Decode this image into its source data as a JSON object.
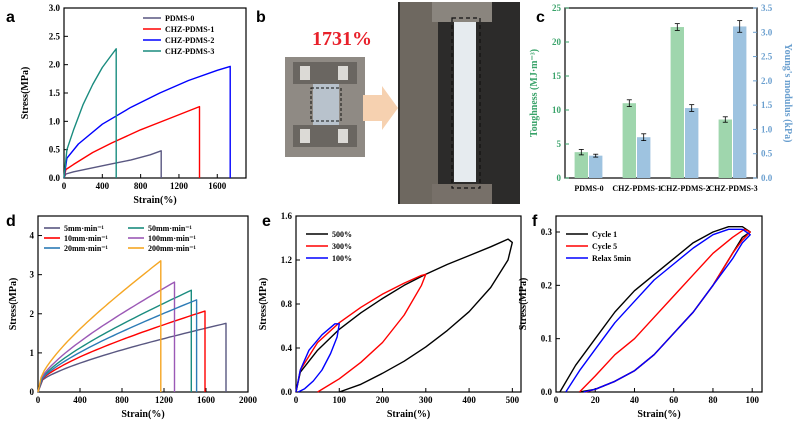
{
  "panel_labels": {
    "a": "a",
    "b": "b",
    "c": "c",
    "d": "d",
    "e": "e",
    "f": "f"
  },
  "photo": {
    "strain_label": "1731%",
    "label_color": "#e8202a"
  },
  "colors": {
    "black": "#000000",
    "red": "#ff0000",
    "blue": "#0000ff",
    "teal": "#1a8c7f",
    "purple": "#595781",
    "green_bar": "#9fd6ad",
    "blue_bar": "#9ec3e0",
    "green_axis": "#3aa36a",
    "blue_axis": "#6a9fcf"
  },
  "chart_data": [
    {
      "id": "a",
      "type": "line",
      "xlabel": "Strain(%)",
      "ylabel": "Stress(MPa)",
      "xlim": [
        0,
        1900
      ],
      "ylim": [
        0,
        3.0
      ],
      "xticks": [
        0,
        400,
        800,
        1200,
        1600
      ],
      "yticks": [
        0,
        0.5,
        1.0,
        1.5,
        2.0,
        2.5,
        3.0
      ],
      "legend_position": "top-center",
      "series": [
        {
          "name": "PDMS-0",
          "color": "#595781",
          "break_x": 1015,
          "x": [
            0,
            20,
            100,
            300,
            500,
            700,
            900,
            1015
          ],
          "y": [
            0,
            0.07,
            0.11,
            0.18,
            0.25,
            0.32,
            0.41,
            0.48
          ]
        },
        {
          "name": "CHZ-PDMS-1",
          "color": "#ff0000",
          "break_x": 1415,
          "x": [
            0,
            20,
            100,
            300,
            500,
            800,
            1100,
            1415
          ],
          "y": [
            0,
            0.15,
            0.24,
            0.45,
            0.62,
            0.85,
            1.05,
            1.26
          ]
        },
        {
          "name": "CHZ-PDMS-2",
          "color": "#0000ff",
          "break_x": 1735,
          "x": [
            0,
            30,
            150,
            400,
            700,
            1000,
            1300,
            1600,
            1735
          ],
          "y": [
            0,
            0.35,
            0.6,
            0.95,
            1.25,
            1.5,
            1.72,
            1.9,
            1.97
          ]
        },
        {
          "name": "CHZ-PDMS-3",
          "color": "#1a8c7f",
          "break_x": 545,
          "x": [
            0,
            30,
            100,
            200,
            300,
            400,
            500,
            545
          ],
          "y": [
            0,
            0.5,
            0.85,
            1.3,
            1.65,
            1.95,
            2.18,
            2.28
          ]
        }
      ]
    },
    {
      "id": "c",
      "type": "bar",
      "categories": [
        "PDMS-0",
        "CHZ-PDMS-1",
        "CHZ-PDMS-2",
        "CHZ-PDMS-3"
      ],
      "ylabel_left": "Toughness (MJ·m⁻³)",
      "ylabel_right": "Young's modulus (kPa)",
      "ylim_left": [
        0,
        25
      ],
      "ylim_right": [
        0,
        3.5
      ],
      "yticks_left": [
        0,
        5,
        10,
        15,
        20,
        25
      ],
      "yticks_right": [
        0,
        0.5,
        1.0,
        1.5,
        2.0,
        2.5,
        3.0,
        3.5
      ],
      "series": [
        {
          "name": "Toughness",
          "axis": "left",
          "color": "#9fd6ad",
          "values": [
            3.8,
            11.0,
            22.2,
            8.6
          ],
          "errors": [
            0.4,
            0.5,
            0.5,
            0.4
          ]
        },
        {
          "name": "Young's modulus",
          "axis": "right",
          "color": "#9ec3e0",
          "values": [
            0.46,
            0.84,
            1.44,
            3.12
          ],
          "errors": [
            0.03,
            0.07,
            0.07,
            0.12
          ]
        }
      ]
    },
    {
      "id": "d",
      "type": "line",
      "xlabel": "Strain(%)",
      "ylabel": "Stress(MPa)",
      "xlim": [
        0,
        2000
      ],
      "ylim": [
        0,
        4.5
      ],
      "xticks": [
        0,
        400,
        800,
        1200,
        1600,
        2000
      ],
      "yticks": [
        0,
        1,
        2,
        3,
        4
      ],
      "legend_position": "top-left",
      "series": [
        {
          "name": "5mm·min⁻¹",
          "color": "#595781",
          "break_x": 1790,
          "A": 0.27,
          "B": 0.0048,
          "C": 0.0005
        },
        {
          "name": "50mm·min⁻¹",
          "color": "#1a8c7f",
          "break_x": 1460,
          "A": 0.33,
          "B": 0.0075,
          "C": 0.00105
        },
        {
          "name": "10mm·min⁻¹",
          "color": "#ff0000",
          "break_x": 1590,
          "A": 0.3,
          "B": 0.006,
          "C": 0.0007
        },
        {
          "name": "100mm·min⁻¹",
          "color": "#9b59b6",
          "break_x": 1300,
          "A": 0.35,
          "B": 0.0085,
          "C": 0.0013
        },
        {
          "name": "20mm·min⁻¹",
          "color": "#2c7bb6",
          "break_x": 1510,
          "A": 0.31,
          "B": 0.0067,
          "C": 0.0009
        },
        {
          "name": "200mm·min⁻¹",
          "color": "#f5a623",
          "break_x": 1170,
          "A": 0.38,
          "B": 0.011,
          "C": 0.0018
        }
      ]
    },
    {
      "id": "e",
      "type": "line",
      "xlabel": "Strain(%)",
      "ylabel": "Stress(MPa)",
      "xlim": [
        0,
        520
      ],
      "ylim": [
        0,
        1.6
      ],
      "xticks": [
        0,
        100,
        200,
        300,
        400,
        500
      ],
      "yticks": [
        0,
        0.4,
        0.8,
        1.2,
        1.6
      ],
      "legend_position": "top-left",
      "series": [
        {
          "name": "500%",
          "color": "#000000",
          "x": [
            0,
            10,
            50,
            100,
            150,
            200,
            250,
            300,
            350,
            400,
            450,
            490,
            500,
            490,
            450,
            400,
            350,
            300,
            250,
            200,
            150,
            100
          ],
          "y": [
            0,
            0.18,
            0.38,
            0.57,
            0.72,
            0.85,
            0.97,
            1.07,
            1.16,
            1.24,
            1.32,
            1.39,
            1.36,
            1.2,
            0.95,
            0.73,
            0.56,
            0.41,
            0.28,
            0.17,
            0.07,
            0
          ]
        },
        {
          "name": "300%",
          "color": "#ff0000",
          "x": [
            0,
            10,
            50,
            100,
            150,
            200,
            250,
            290,
            300,
            290,
            250,
            200,
            150,
            100,
            50
          ],
          "y": [
            0,
            0.2,
            0.45,
            0.63,
            0.77,
            0.89,
            0.99,
            1.06,
            1.07,
            0.97,
            0.7,
            0.45,
            0.27,
            0.12,
            0
          ]
        },
        {
          "name": "100%",
          "color": "#0000ff",
          "x": [
            0,
            10,
            30,
            60,
            90,
            100,
            95,
            80,
            60,
            40,
            20,
            5
          ],
          "y": [
            0,
            0.2,
            0.38,
            0.52,
            0.62,
            0.62,
            0.5,
            0.35,
            0.2,
            0.1,
            0.03,
            0
          ]
        }
      ]
    },
    {
      "id": "f",
      "type": "line",
      "xlabel": "Strain(%)",
      "ylabel": "Stress(MPa)",
      "xlim": [
        0,
        105
      ],
      "ylim": [
        0,
        0.33
      ],
      "xticks": [
        0,
        20,
        40,
        60,
        80,
        100
      ],
      "yticks": [
        0,
        0.1,
        0.2,
        0.3
      ],
      "legend_position": "top-left",
      "series": [
        {
          "name": "Cycle 1",
          "color": "#000000",
          "x": [
            2,
            10,
            20,
            30,
            40,
            50,
            60,
            70,
            80,
            88,
            95,
            99,
            95,
            90,
            80,
            70,
            60,
            50,
            40,
            30,
            20,
            12
          ],
          "y": [
            0,
            0.05,
            0.1,
            0.15,
            0.19,
            0.22,
            0.25,
            0.28,
            0.3,
            0.31,
            0.31,
            0.3,
            0.29,
            0.26,
            0.2,
            0.15,
            0.11,
            0.07,
            0.04,
            0.02,
            0.005,
            0
          ]
        },
        {
          "name": "Cycle 5",
          "color": "#ff0000",
          "x": [
            12,
            20,
            30,
            40,
            50,
            60,
            70,
            80,
            90,
            96,
            99,
            95,
            90,
            80,
            70,
            60,
            50,
            40,
            30,
            20,
            15
          ],
          "y": [
            0,
            0.03,
            0.07,
            0.1,
            0.14,
            0.18,
            0.22,
            0.26,
            0.29,
            0.305,
            0.3,
            0.285,
            0.26,
            0.2,
            0.15,
            0.11,
            0.07,
            0.04,
            0.02,
            0.005,
            0
          ]
        },
        {
          "name": "Relax 5min",
          "color": "#0000ff",
          "x": [
            5,
            12,
            20,
            30,
            40,
            50,
            60,
            70,
            80,
            88,
            95,
            99,
            95,
            90,
            80,
            70,
            60,
            50,
            40,
            30,
            20,
            14
          ],
          "y": [
            0,
            0.04,
            0.08,
            0.13,
            0.17,
            0.21,
            0.24,
            0.27,
            0.295,
            0.305,
            0.305,
            0.295,
            0.28,
            0.25,
            0.2,
            0.15,
            0.11,
            0.07,
            0.04,
            0.02,
            0.005,
            0
          ]
        }
      ]
    }
  ]
}
